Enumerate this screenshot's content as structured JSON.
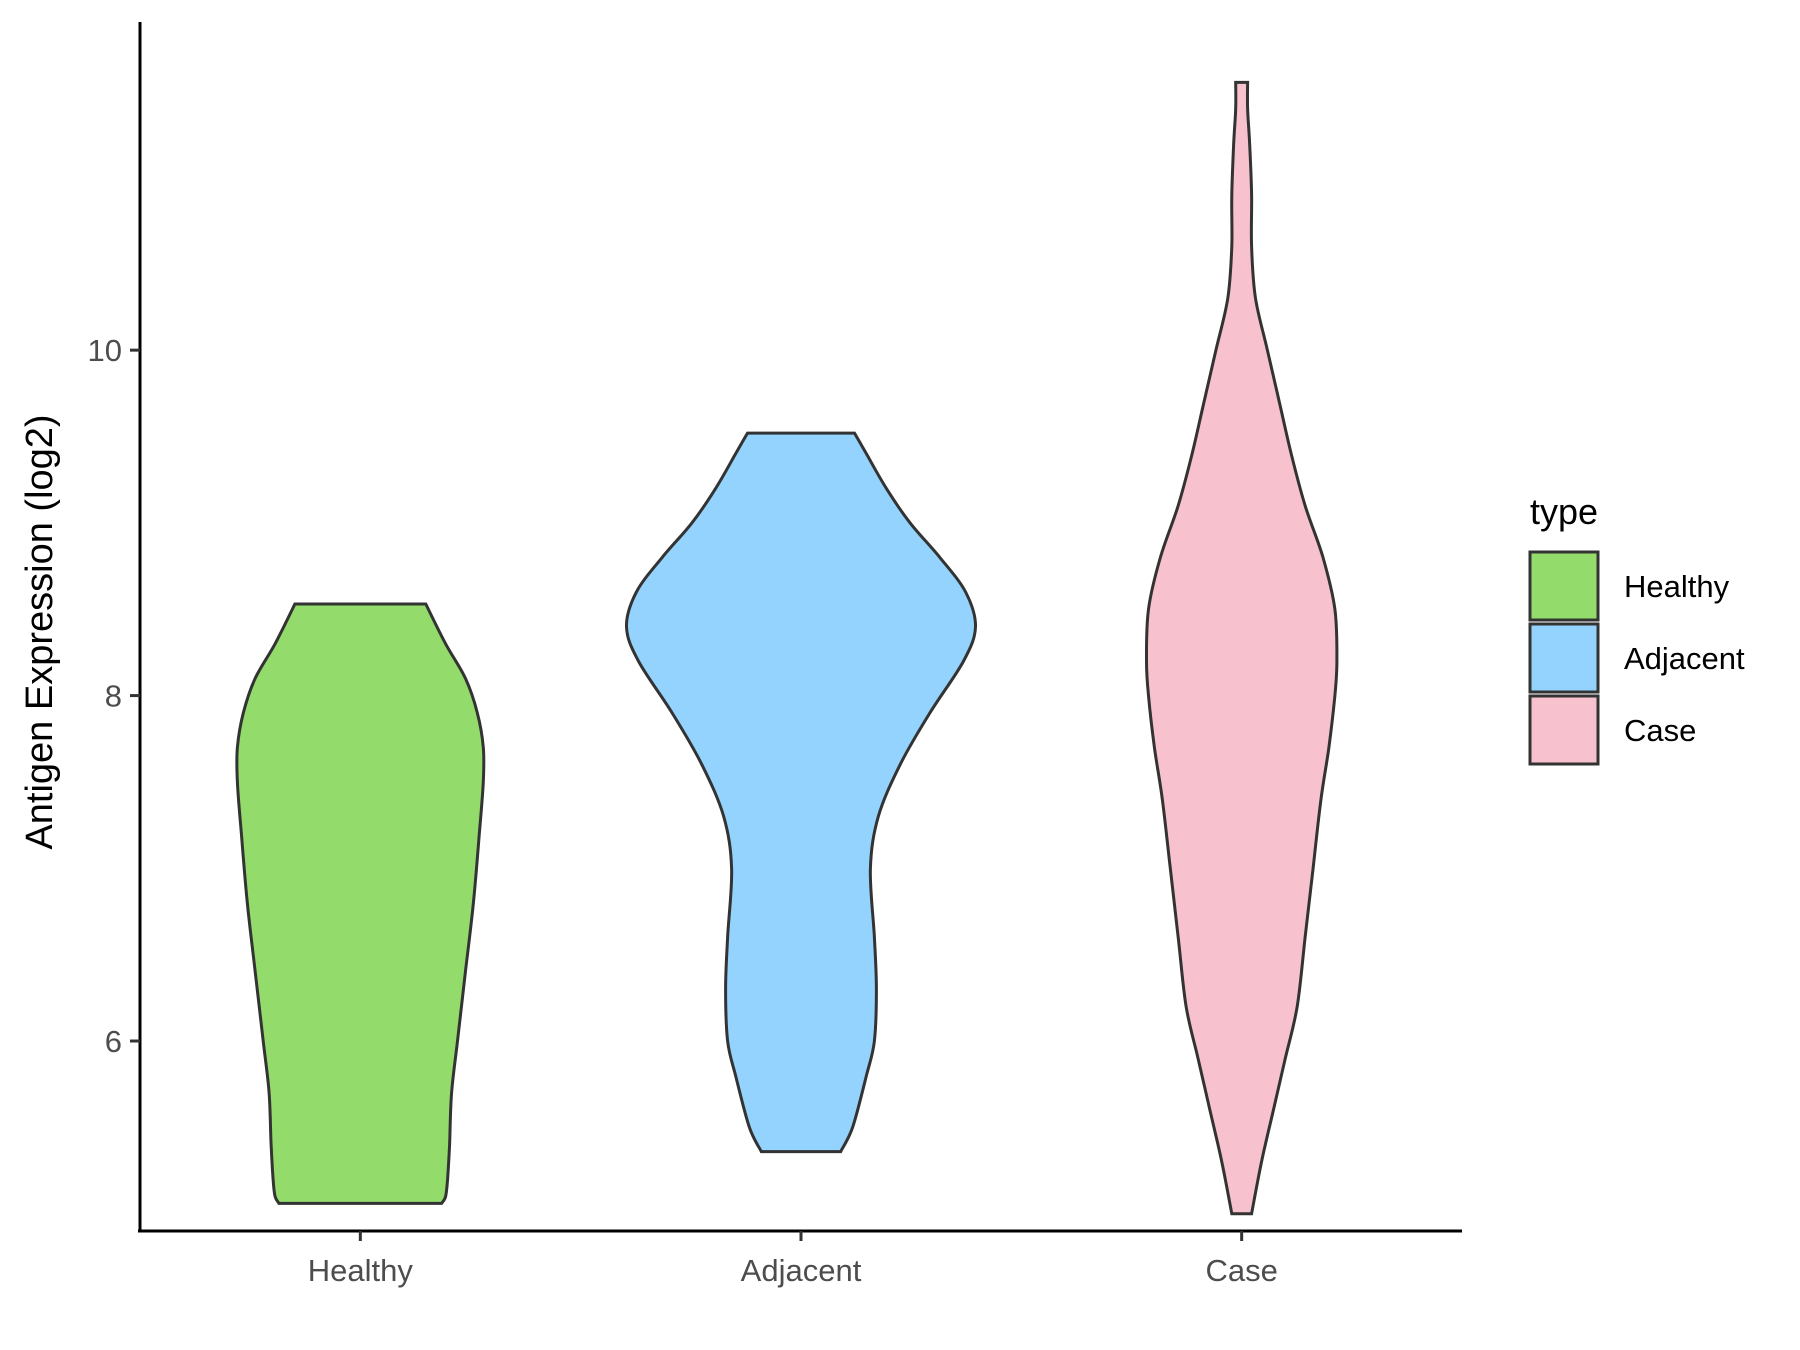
{
  "chart_data": {
    "type": "violin",
    "title": "",
    "xlabel": "",
    "ylabel": "Antigen Expression (log2)",
    "ylim": [
      4.9,
      11.9
    ],
    "y_ticks": [
      6,
      8,
      10
    ],
    "categories": [
      "Healthy",
      "Adjacent",
      "Case"
    ],
    "colors": {
      "Healthy": "#93dc6b",
      "Adjacent": "#93d3fe",
      "Case": "#f7c1cd"
    },
    "legend": {
      "title": "type",
      "position": "right",
      "items": [
        "Healthy",
        "Adjacent",
        "Case"
      ]
    },
    "grid": false,
    "series": [
      {
        "name": "Healthy",
        "min": 5.06,
        "max": 8.53,
        "density_profile": [
          [
            5.06,
            0.41
          ],
          [
            5.1,
            0.43
          ],
          [
            5.2,
            0.44
          ],
          [
            5.4,
            0.45
          ],
          [
            5.7,
            0.46
          ],
          [
            6.0,
            0.49
          ],
          [
            6.4,
            0.53
          ],
          [
            6.8,
            0.57
          ],
          [
            7.2,
            0.6
          ],
          [
            7.5,
            0.62
          ],
          [
            7.7,
            0.62
          ],
          [
            7.9,
            0.59
          ],
          [
            8.1,
            0.53
          ],
          [
            8.3,
            0.43
          ],
          [
            8.53,
            0.33
          ]
        ]
      },
      {
        "name": "Adjacent",
        "min": 5.36,
        "max": 9.52,
        "density_profile": [
          [
            5.36,
            0.2
          ],
          [
            5.5,
            0.26
          ],
          [
            5.8,
            0.33
          ],
          [
            6.0,
            0.37
          ],
          [
            6.3,
            0.38
          ],
          [
            6.6,
            0.37
          ],
          [
            7.0,
            0.35
          ],
          [
            7.3,
            0.39
          ],
          [
            7.6,
            0.5
          ],
          [
            7.9,
            0.65
          ],
          [
            8.2,
            0.82
          ],
          [
            8.4,
            0.88
          ],
          [
            8.6,
            0.83
          ],
          [
            8.8,
            0.7
          ],
          [
            9.0,
            0.55
          ],
          [
            9.2,
            0.43
          ],
          [
            9.4,
            0.33
          ],
          [
            9.52,
            0.27
          ]
        ]
      },
      {
        "name": "Case",
        "min": 5.0,
        "max": 11.55,
        "density_profile": [
          [
            5.0,
            0.05
          ],
          [
            5.3,
            0.1
          ],
          [
            5.6,
            0.16
          ],
          [
            5.9,
            0.22
          ],
          [
            6.2,
            0.28
          ],
          [
            6.6,
            0.32
          ],
          [
            7.0,
            0.36
          ],
          [
            7.4,
            0.4
          ],
          [
            7.7,
            0.44
          ],
          [
            8.0,
            0.47
          ],
          [
            8.2,
            0.48
          ],
          [
            8.5,
            0.47
          ],
          [
            8.8,
            0.41
          ],
          [
            9.1,
            0.32
          ],
          [
            9.4,
            0.25
          ],
          [
            9.7,
            0.19
          ],
          [
            10.0,
            0.13
          ],
          [
            10.3,
            0.07
          ],
          [
            10.6,
            0.05
          ],
          [
            10.9,
            0.05
          ],
          [
            11.2,
            0.04
          ],
          [
            11.4,
            0.03
          ],
          [
            11.55,
            0.03
          ]
        ]
      }
    ]
  }
}
